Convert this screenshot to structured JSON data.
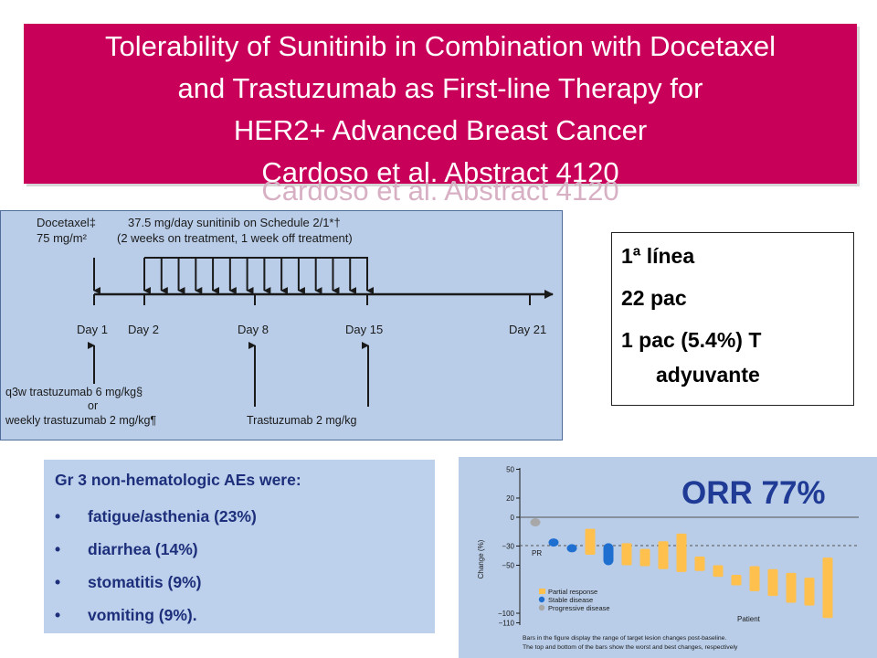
{
  "title": {
    "lines": [
      "Tolerability of Sunitinib in Combination with Docetaxel",
      "and Trastuzumab as First-line Therapy for",
      "HER2+ Advanced Breast Cancer",
      "Cardoso et al. Abstract 4120"
    ],
    "shadow_line": "Cardoso et al. Abstract 4120"
  },
  "schedule": {
    "docetaxel_label": "Docetaxel‡",
    "docetaxel_dose": "75 mg/m²",
    "sunitinib_label": "37.5 mg/day sunitinib on Schedule 2/1*†",
    "sunitinib_sub": "(2 weeks on treatment, 1 week off treatment)",
    "days": [
      "Day 1",
      "Day 2",
      "Day 8",
      "Day 15",
      "Day 21"
    ],
    "trastuzumab_q3w": "q3w trastuzumab 6 mg/kg§",
    "trastuzumab_or": "or",
    "trastuzumab_weekly": "weekly trastuzumab 2 mg/kg¶",
    "trastuzumab_day8": "Trastuzumab 2 mg/kg"
  },
  "info": {
    "lines": [
      "1ª línea",
      "22 pac",
      "1 pac (5.4%) T",
      "adyuvante"
    ]
  },
  "ae": {
    "heading": "Gr 3 non-hematologic AEs were:",
    "bullet": "•",
    "items": [
      "fatigue/asthenia (23%)",
      "diarrhea (14%)",
      "stomatitis (9%)",
      "vomiting (9%)."
    ]
  },
  "orr": "ORR 77%",
  "chart_data": {
    "type": "bar",
    "ylabel": "Change (%)",
    "xlabel": "Patient",
    "ylim": [
      -110,
      50
    ],
    "yticks": [
      50,
      20,
      0,
      -30,
      -50,
      -100,
      -110
    ],
    "reference_label": "PR",
    "reference_value": -30,
    "legend": [
      "Partial response",
      "Stable disease",
      "Progressive disease"
    ],
    "legend_position": "bottom-left",
    "colors": {
      "Partial response": "#ffc04d",
      "Stable disease": "#1f6fd1",
      "Progressive disease": "#a8a8a8"
    },
    "footnote": [
      "Bars in the figure display the range of target lesion changes post-baseline.",
      "The top and bottom of the bars show the worst and best changes, respectively"
    ],
    "bars": [
      {
        "patient": 1,
        "top": -1,
        "bottom": -5,
        "response": "Progressive disease"
      },
      {
        "patient": 2,
        "top": -22,
        "bottom": -28,
        "response": "Stable disease"
      },
      {
        "patient": 3,
        "top": -28,
        "bottom": -34,
        "response": "Stable disease"
      },
      {
        "patient": 4,
        "top": -12,
        "bottom": -39,
        "response": "Partial response"
      },
      {
        "patient": 5,
        "top": -27,
        "bottom": -50,
        "response": "Stable disease"
      },
      {
        "patient": 6,
        "top": -27,
        "bottom": -50,
        "response": "Partial response"
      },
      {
        "patient": 7,
        "top": -33,
        "bottom": -51,
        "response": "Partial response"
      },
      {
        "patient": 8,
        "top": -25,
        "bottom": -54,
        "response": "Partial response"
      },
      {
        "patient": 9,
        "top": -17,
        "bottom": -57,
        "response": "Partial response"
      },
      {
        "patient": 10,
        "top": -41,
        "bottom": -56,
        "response": "Partial response"
      },
      {
        "patient": 11,
        "top": -50,
        "bottom": -62,
        "response": "Partial response"
      },
      {
        "patient": 12,
        "top": -60,
        "bottom": -71,
        "response": "Partial response"
      },
      {
        "patient": 13,
        "top": -51,
        "bottom": -77,
        "response": "Partial response"
      },
      {
        "patient": 14,
        "top": -54,
        "bottom": -82,
        "response": "Partial response"
      },
      {
        "patient": 15,
        "top": -58,
        "bottom": -89,
        "response": "Partial response"
      },
      {
        "patient": 16,
        "top": -63,
        "bottom": -92,
        "response": "Partial response"
      },
      {
        "patient": 17,
        "top": -42,
        "bottom": -105,
        "response": "Partial response"
      }
    ]
  }
}
